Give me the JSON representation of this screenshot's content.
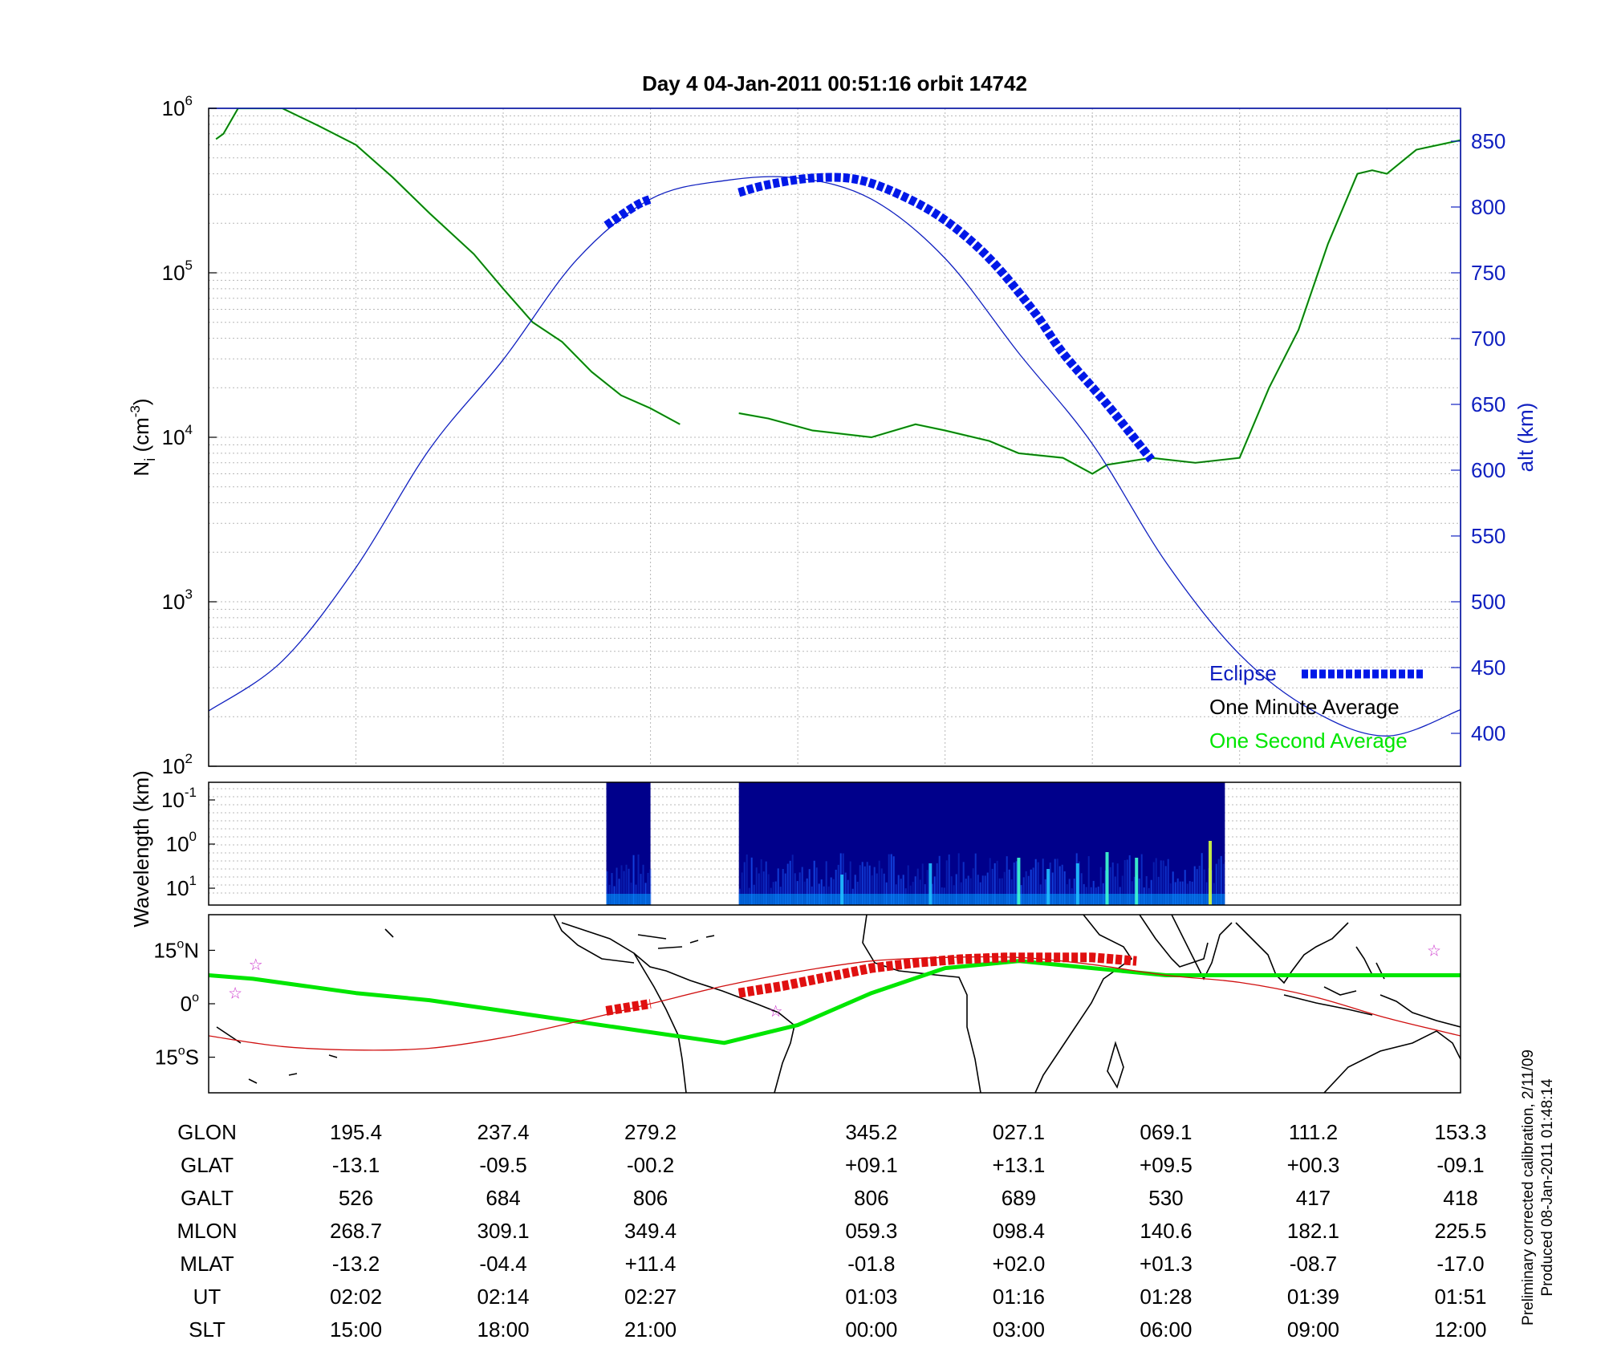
{
  "title": "Day 4  04-Jan-2011 00:51:16   orbit 14742",
  "footnote": [
    "Preliminary corrected calibration, 2/11/09",
    "Produced 08-Jan-2011 01:48:14"
  ],
  "colors": {
    "eclipse": "#0018e8",
    "minute": "#1a5a1a",
    "second": "#00e600",
    "alt": "#1020c0",
    "track": "#d01010",
    "map": "#000000",
    "star": "#cc33cc",
    "spec_bg": "#00008b"
  },
  "chart_data": [
    {
      "type": "line",
      "panel": "density",
      "ylabel": "N",
      "ylabel_sub": "i",
      "ylabel_unit": "(cm",
      "ylabel_exp": "-3",
      "ylabel_close": ")",
      "yscale": "log",
      "ylim": [
        100,
        1000000
      ],
      "y_ticks": [
        {
          "base": "10",
          "exp": "2"
        },
        {
          "base": "10",
          "exp": "3"
        },
        {
          "base": "10",
          "exp": "4"
        },
        {
          "base": "10",
          "exp": "5"
        },
        {
          "base": "10",
          "exp": "6"
        }
      ],
      "y2label": "alt (km)",
      "y2lim": [
        375,
        875
      ],
      "y2_ticks": [
        "400",
        "450",
        "500",
        "550",
        "600",
        "650",
        "700",
        "750",
        "800",
        "850"
      ],
      "xlim": [
        0,
        8.5
      ],
      "grid": true,
      "legend_position": "bottom-right",
      "legend": [
        {
          "label": "Eclipse",
          "key": "eclipse"
        },
        {
          "label": "One Minute Average",
          "key": "minute"
        },
        {
          "label": "One Second Average",
          "key": "second"
        }
      ],
      "series": [
        {
          "key": "density_pass1",
          "x": [
            0.05,
            0.1,
            0.2,
            0.35,
            0.5,
            0.75,
            1.0,
            1.25,
            1.5,
            1.8,
            2.0,
            2.2,
            2.4,
            2.6,
            2.8,
            3.0,
            3.2
          ],
          "y": [
            650000,
            700000,
            1000000,
            1000000,
            1000000,
            780000,
            600000,
            380000,
            230000,
            130000,
            80000,
            50000,
            38000,
            25000,
            18000,
            15000,
            12000
          ]
        },
        {
          "key": "density_pass2",
          "x": [
            3.6,
            3.8,
            4.1,
            4.5,
            4.8,
            5.0,
            5.3,
            5.5,
            5.8,
            6.0,
            6.1,
            6.4,
            6.7,
            7.0,
            7.2,
            7.4,
            7.6,
            7.8,
            7.9,
            8.0,
            8.2,
            8.5
          ],
          "y": [
            14000,
            13000,
            11000,
            10000,
            12000,
            11000,
            9500,
            8000,
            7500,
            6000,
            6800,
            7500,
            7000,
            7500,
            20000,
            45000,
            150000,
            400000,
            420000,
            400000,
            560000,
            640000
          ]
        },
        {
          "key": "altitude",
          "axis": "y2",
          "x": [
            0,
            0.5,
            1.0,
            1.5,
            2.0,
            2.5,
            3.0,
            3.5,
            4.0,
            4.5,
            5.0,
            5.5,
            6.0,
            6.5,
            7.0,
            7.5,
            8.0,
            8.5
          ],
          "y": [
            417,
            455,
            526,
            616,
            684,
            760,
            806,
            820,
            822,
            806,
            761,
            689,
            620,
            530,
            460,
            417,
            398,
            418
          ]
        },
        {
          "key": "eclipse_pass1",
          "axis": "y2",
          "x": [
            2.7,
            2.9,
            3.0
          ],
          "y": [
            786,
            801,
            806
          ]
        },
        {
          "key": "eclipse_pass2",
          "axis": "y2",
          "x": [
            3.6,
            3.8,
            4.1,
            4.4,
            4.7,
            5.0,
            5.3,
            5.6,
            5.8,
            6.1,
            6.4
          ],
          "y": [
            811,
            817,
            822,
            821,
            809,
            790,
            761,
            721,
            689,
            650,
            608
          ]
        }
      ]
    },
    {
      "type": "heatmap",
      "panel": "spectrogram",
      "ylabel": "Wavelength (km)",
      "y_ticks": [
        {
          "base": "10",
          "exp": "-1"
        },
        {
          "base": "10",
          "exp": "0"
        },
        {
          "base": "10",
          "exp": "1"
        }
      ],
      "xlim": [
        0,
        8.5
      ],
      "data_spans": [
        [
          2.7,
          3.0
        ],
        [
          3.6,
          6.9
        ]
      ],
      "bright_features": [
        {
          "x": 4.9,
          "level": 0.6
        },
        {
          "x": 5.5,
          "level": 0.7
        },
        {
          "x": 5.7,
          "level": 0.5
        },
        {
          "x": 5.9,
          "level": 0.6
        },
        {
          "x": 6.1,
          "level": 0.8
        },
        {
          "x": 6.3,
          "level": 0.7
        },
        {
          "x": 6.8,
          "level": 1.0
        },
        {
          "x": 4.3,
          "level": 0.4
        }
      ]
    },
    {
      "type": "line",
      "panel": "map",
      "xlim": [
        0,
        8.5
      ],
      "ylim": [
        -25,
        25
      ],
      "y_ticks": [
        {
          "value": 15,
          "label": "15",
          "hemi": "N"
        },
        {
          "value": 0,
          "label": "0",
          "hemi": ""
        },
        {
          "value": -15,
          "label": "15",
          "hemi": "S"
        }
      ],
      "series": [
        {
          "key": "green_track",
          "x": [
            0,
            0.3,
            1.0,
            1.5,
            2.0,
            2.5,
            3.0,
            3.5,
            4.0,
            4.5,
            5.0,
            5.5,
            6.0,
            6.5,
            7.0,
            7.5,
            8.0,
            8.5
          ],
          "y": [
            8,
            7,
            3,
            1,
            -2,
            -5,
            -8,
            -11,
            -6,
            3,
            10,
            12,
            10,
            8,
            8,
            8,
            8,
            8
          ]
        },
        {
          "key": "red_track",
          "x": [
            0,
            0.5,
            1.0,
            1.5,
            2.0,
            2.5,
            3.0,
            3.5,
            4.0,
            4.5,
            5.0,
            5.5,
            6.0,
            6.5,
            7.0,
            7.5,
            8.0,
            8.5
          ],
          "y": [
            -9,
            -12,
            -13,
            -12.5,
            -9.5,
            -5,
            0,
            5,
            9,
            12,
            13,
            13,
            11,
            8,
            6,
            2,
            -4,
            -9
          ]
        },
        {
          "key": "red_eclipse_pass1",
          "x": [
            2.7,
            2.85,
            3.0
          ],
          "y": [
            -2,
            -1,
            0
          ]
        },
        {
          "key": "red_eclipse_pass2",
          "x": [
            3.6,
            3.9,
            4.2,
            4.5,
            4.8,
            5.1,
            5.4,
            5.7,
            6.0,
            6.3
          ],
          "y": [
            3,
            5,
            7.5,
            10,
            11.5,
            12.5,
            13,
            13,
            13,
            12
          ]
        }
      ],
      "stars": [
        {
          "x": 0.32,
          "y": 11
        },
        {
          "x": 0.18,
          "y": 3
        },
        {
          "x": 3.85,
          "y": -2
        },
        {
          "x": 8.32,
          "y": 15
        }
      ]
    }
  ],
  "table": {
    "row_labels": [
      "GLON",
      "GLAT",
      "GALT",
      "MLON",
      "MLAT",
      "UT",
      "SLT"
    ],
    "columns": [
      {
        "x": 1.0,
        "values": [
          "195.4",
          "-13.1",
          "526",
          "268.7",
          "-13.2",
          "02:02",
          "15:00"
        ]
      },
      {
        "x": 2.0,
        "values": [
          "237.4",
          "-09.5",
          "684",
          "309.1",
          "-04.4",
          "02:14",
          "18:00"
        ]
      },
      {
        "x": 3.0,
        "values": [
          "279.2",
          "-00.2",
          "806",
          "349.4",
          "+11.4",
          "02:27",
          "21:00"
        ]
      },
      {
        "x": 4.5,
        "values": [
          "345.2",
          "+09.1",
          "806",
          "059.3",
          "-01.8",
          "01:03",
          "00:00"
        ]
      },
      {
        "x": 5.5,
        "values": [
          "027.1",
          "+13.1",
          "689",
          "098.4",
          "+02.0",
          "01:16",
          "03:00"
        ]
      },
      {
        "x": 6.5,
        "values": [
          "069.1",
          "+09.5",
          "530",
          "140.6",
          "+01.3",
          "01:28",
          "06:00"
        ]
      },
      {
        "x": 7.5,
        "values": [
          "111.2",
          "+00.3",
          "417",
          "182.1",
          "-08.7",
          "01:39",
          "09:00"
        ]
      },
      {
        "x": 8.5,
        "values": [
          "153.3",
          "-09.1",
          "418",
          "225.5",
          "-17.0",
          "01:51",
          "12:00"
        ]
      }
    ]
  }
}
